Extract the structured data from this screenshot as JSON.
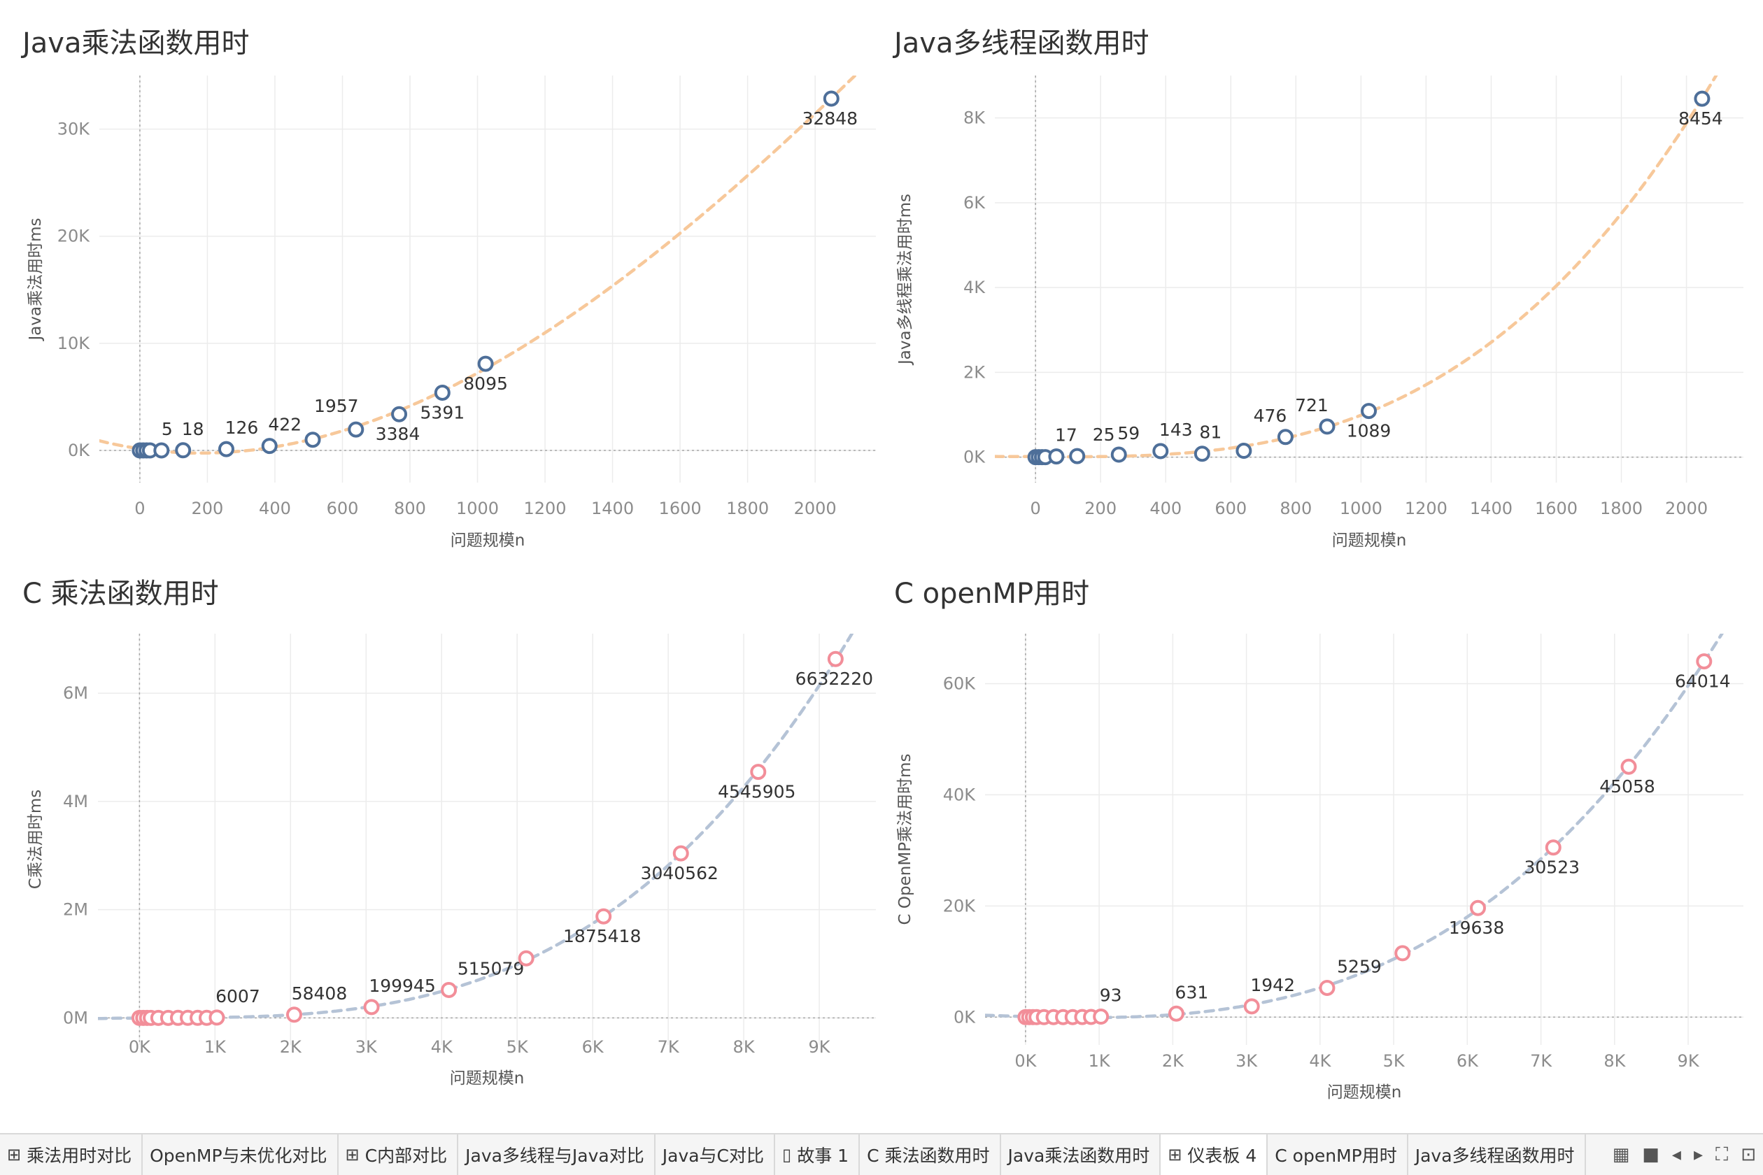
{
  "chart_data": [
    {
      "type": "scatter",
      "title": "Java乘法函数用时",
      "xlabel": "问题规模n",
      "ylabel": "Java乘法用时ms",
      "xlim": [
        -120,
        2180
      ],
      "ylim": [
        -3000,
        35000
      ],
      "xticks": [
        0,
        200,
        400,
        600,
        800,
        1000,
        1200,
        1400,
        1600,
        1800,
        2000
      ],
      "xtick_labels": [
        "0",
        "200",
        "400",
        "600",
        "800",
        "1000",
        "1200",
        "1400",
        "1600",
        "1800",
        "2000"
      ],
      "yticks": [
        0,
        10000,
        20000,
        30000
      ],
      "ytick_labels": [
        "0K",
        "10K",
        "20K",
        "30K"
      ],
      "marker_color": "#4e6f99",
      "trend_color": "#f7c89a",
      "points": [
        {
          "x": 0,
          "y": 0
        },
        {
          "x": 10,
          "y": 0
        },
        {
          "x": 20,
          "y": 0
        },
        {
          "x": 30,
          "y": 1
        },
        {
          "x": 64,
          "y": 5,
          "label": "5"
        },
        {
          "x": 128,
          "y": 18,
          "label": "18"
        },
        {
          "x": 256,
          "y": 126,
          "label": "126"
        },
        {
          "x": 384,
          "y": 422,
          "label": "422"
        },
        {
          "x": 512,
          "y": 1000
        },
        {
          "x": 640,
          "y": 1957,
          "label": "1957"
        },
        {
          "x": 768,
          "y": 3384,
          "label": "3384"
        },
        {
          "x": 896,
          "y": 5391,
          "label": "5391"
        },
        {
          "x": 1024,
          "y": 8095,
          "label": "8095"
        },
        {
          "x": 2048,
          "y": 32848,
          "label": "32848"
        }
      ]
    },
    {
      "type": "scatter",
      "title": "Java多线程函数用时",
      "xlabel": "问题规模n",
      "ylabel": "Java多线程乘法用时ms",
      "xlim": [
        -125,
        2175
      ],
      "ylim": [
        -600,
        9000
      ],
      "xticks": [
        0,
        200,
        400,
        600,
        800,
        1000,
        1200,
        1400,
        1600,
        1800,
        2000
      ],
      "xtick_labels": [
        "0",
        "200",
        "400",
        "600",
        "800",
        "1000",
        "1200",
        "1400",
        "1600",
        "1800",
        "2000"
      ],
      "yticks": [
        0,
        2000,
        4000,
        6000,
        8000
      ],
      "ytick_labels": [
        "0K",
        "2K",
        "4K",
        "6K",
        "8K"
      ],
      "marker_color": "#4e6f99",
      "trend_color": "#f7c89a",
      "points": [
        {
          "x": 0,
          "y": 0
        },
        {
          "x": 10,
          "y": 0
        },
        {
          "x": 20,
          "y": 0
        },
        {
          "x": 30,
          "y": 1
        },
        {
          "x": 64,
          "y": 17,
          "label": "17"
        },
        {
          "x": 128,
          "y": 25,
          "label": "25"
        },
        {
          "x": 256,
          "y": 59,
          "label": "59"
        },
        {
          "x": 384,
          "y": 143,
          "label": "143"
        },
        {
          "x": 512,
          "y": 81,
          "label": "81"
        },
        {
          "x": 640,
          "y": 150
        },
        {
          "x": 768,
          "y": 476,
          "label": "476"
        },
        {
          "x": 896,
          "y": 721,
          "label": "721"
        },
        {
          "x": 1024,
          "y": 1089,
          "label": "1089"
        },
        {
          "x": 2048,
          "y": 8454,
          "label": "8454"
        }
      ]
    },
    {
      "type": "scatter",
      "title": "C 乘法函数用时",
      "xlabel": "问题规模n",
      "ylabel": "C乘法用时ms",
      "xlim": [
        -550,
        9750
      ],
      "ylim": [
        -500000,
        7100000
      ],
      "xticks": [
        0,
        1000,
        2000,
        3000,
        4000,
        5000,
        6000,
        7000,
        8000,
        9000
      ],
      "xtick_labels": [
        "0K",
        "1K",
        "2K",
        "3K",
        "4K",
        "5K",
        "6K",
        "7K",
        "8K",
        "9K"
      ],
      "yticks": [
        0,
        2000000,
        4000000,
        6000000
      ],
      "ytick_labels": [
        "0M",
        "2M",
        "4M",
        "6M"
      ],
      "marker_color": "#f28e99",
      "trend_color": "#b5c3d6",
      "points": [
        {
          "x": 0,
          "y": 0
        },
        {
          "x": 50,
          "y": 0
        },
        {
          "x": 100,
          "y": 0
        },
        {
          "x": 150,
          "y": 0
        },
        {
          "x": 250,
          "y": 10
        },
        {
          "x": 380,
          "y": 40
        },
        {
          "x": 510,
          "y": 90
        },
        {
          "x": 640,
          "y": 200
        },
        {
          "x": 770,
          "y": 400
        },
        {
          "x": 890,
          "y": 600
        },
        {
          "x": 1024,
          "y": 6007,
          "label": "6007"
        },
        {
          "x": 2048,
          "y": 58408,
          "label": "58408"
        },
        {
          "x": 3072,
          "y": 199945,
          "label": "199945"
        },
        {
          "x": 4096,
          "y": 515079,
          "label": "515079"
        },
        {
          "x": 5120,
          "y": 1100000
        },
        {
          "x": 6144,
          "y": 1875418,
          "label": "1875418"
        },
        {
          "x": 7168,
          "y": 3040562,
          "label": "3040562"
        },
        {
          "x": 8192,
          "y": 4545905,
          "label": "4545905"
        },
        {
          "x": 9216,
          "y": 6632220,
          "label": "6632220"
        }
      ]
    },
    {
      "type": "scatter",
      "title": "C openMP用时",
      "xlabel": "问题规模n",
      "ylabel": "C OpenMP乘法用时ms",
      "xlim": [
        -550,
        9750
      ],
      "ylim": [
        -5000,
        69000
      ],
      "xticks": [
        0,
        1000,
        2000,
        3000,
        4000,
        5000,
        6000,
        7000,
        8000,
        9000
      ],
      "xtick_labels": [
        "0K",
        "1K",
        "2K",
        "3K",
        "4K",
        "5K",
        "6K",
        "7K",
        "8K",
        "9K"
      ],
      "yticks": [
        0,
        20000,
        40000,
        60000
      ],
      "ytick_labels": [
        "0K",
        "20K",
        "40K",
        "60K"
      ],
      "marker_color": "#f28e99",
      "trend_color": "#b5c3d6",
      "points": [
        {
          "x": 0,
          "y": 0
        },
        {
          "x": 50,
          "y": 0
        },
        {
          "x": 100,
          "y": 0
        },
        {
          "x": 150,
          "y": 0
        },
        {
          "x": 250,
          "y": 1
        },
        {
          "x": 380,
          "y": 2
        },
        {
          "x": 510,
          "y": 5
        },
        {
          "x": 640,
          "y": 10
        },
        {
          "x": 770,
          "y": 20
        },
        {
          "x": 890,
          "y": 40
        },
        {
          "x": 1024,
          "y": 93,
          "label": "93"
        },
        {
          "x": 2048,
          "y": 631,
          "label": "631"
        },
        {
          "x": 3072,
          "y": 1942,
          "label": "1942"
        },
        {
          "x": 4096,
          "y": 5259,
          "label": "5259"
        },
        {
          "x": 5120,
          "y": 11500
        },
        {
          "x": 6144,
          "y": 19638,
          "label": "19638"
        },
        {
          "x": 7168,
          "y": 30523,
          "label": "30523"
        },
        {
          "x": 8192,
          "y": 45058,
          "label": "45058"
        },
        {
          "x": 9216,
          "y": 64014,
          "label": "64014"
        }
      ]
    }
  ],
  "tabs": [
    {
      "icon": "⊞",
      "icon_name": "dashboard-icon",
      "label": "乘法用时对比"
    },
    {
      "icon": "",
      "label": "OpenMP与未优化对比"
    },
    {
      "icon": "⊞",
      "icon_name": "dashboard-icon",
      "label": "C内部对比"
    },
    {
      "icon": "",
      "label": "Java多线程与Java对比"
    },
    {
      "icon": "",
      "label": "Java与C对比"
    },
    {
      "icon": "▯",
      "icon_name": "story-icon",
      "label": "故事 1"
    },
    {
      "icon": "",
      "label": "C 乘法函数用时"
    },
    {
      "icon": "",
      "label": "Java乘法函数用时"
    },
    {
      "icon": "⊞",
      "icon_name": "dashboard-icon",
      "label": "仪表板 4",
      "active": true
    },
    {
      "icon": "",
      "label": "C openMP用时"
    },
    {
      "icon": "",
      "label": "Java多线程函数用时"
    }
  ],
  "tab_controls": [
    {
      "name": "film-strip-icon",
      "glyph": "▦"
    },
    {
      "name": "tab-view-icon",
      "glyph": "■"
    },
    {
      "name": "prev-tab-icon",
      "glyph": "◂"
    },
    {
      "name": "next-tab-icon",
      "glyph": "▸"
    },
    {
      "name": "fullscreen-icon",
      "glyph": "⛶"
    },
    {
      "name": "presentation-icon",
      "glyph": "⊡"
    }
  ]
}
